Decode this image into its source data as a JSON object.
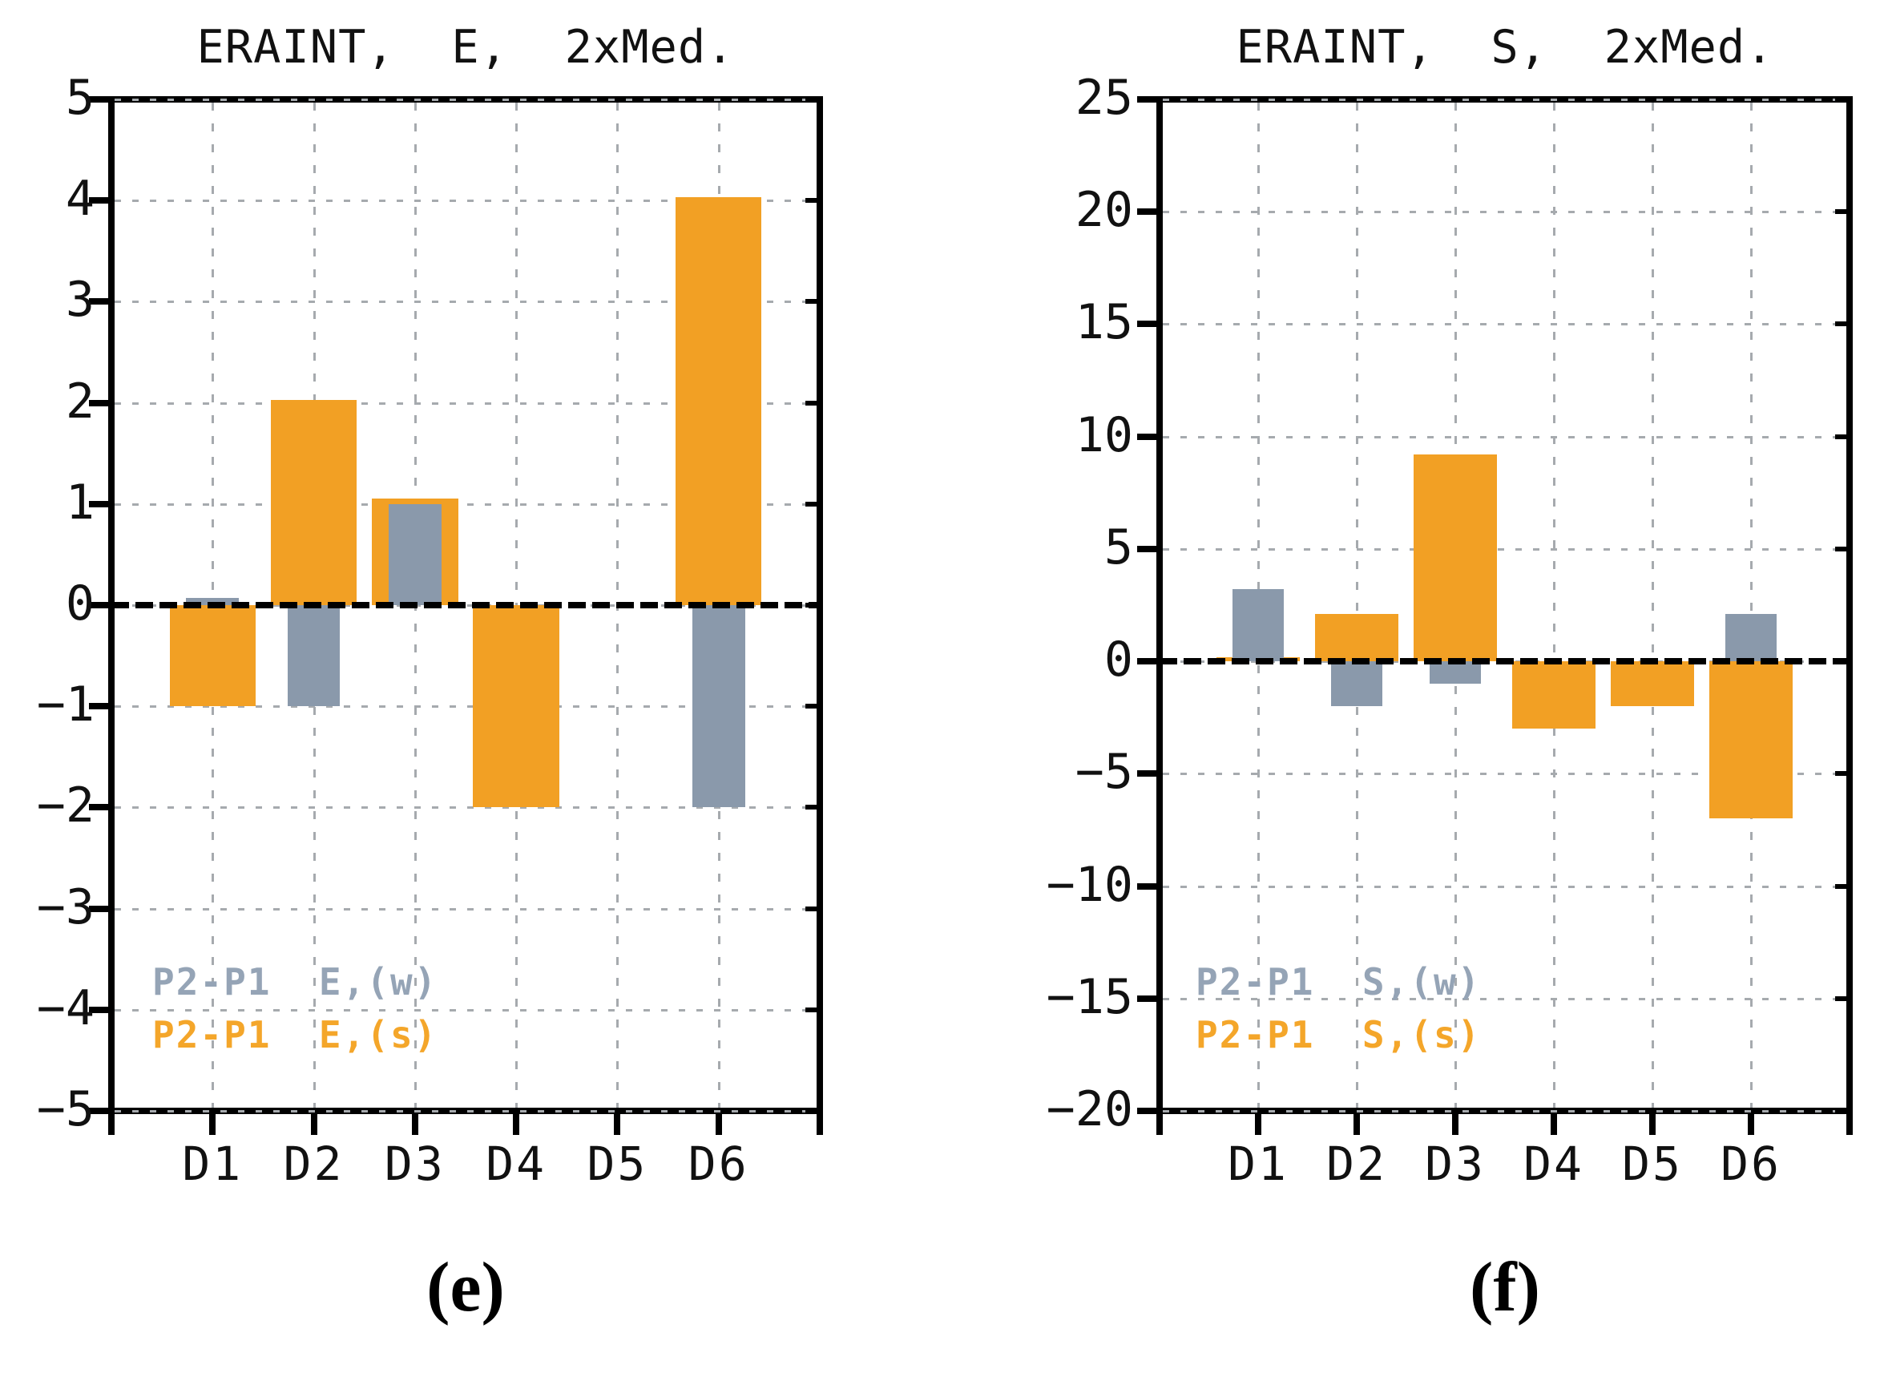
{
  "figure": {
    "background": "#ffffff"
  },
  "colors": {
    "summer_orange": "#F2A024",
    "winter_gray": "#8A99AB",
    "legend_summer": "#F4A62A",
    "legend_winter": "#95A4B6",
    "grid_gray": "#A6AAAE",
    "axis_black": "#000000",
    "text_black": "#111111"
  },
  "chart_data": [
    {
      "type": "bar",
      "title": "ERAINT,  E,  2xMed.",
      "caption": "(e)",
      "categories": [
        "D1",
        "D2",
        "D3",
        "D4",
        "D5",
        "D6"
      ],
      "ylim": [
        -5,
        5
      ],
      "yticks": [
        5,
        4,
        3,
        2,
        1,
        0,
        -1,
        -2,
        -3,
        -4,
        -5
      ],
      "ytick_labels": [
        "5",
        "4",
        "3",
        "2",
        "1",
        "0",
        "−1",
        "−2",
        "−3",
        "−4",
        "−5"
      ],
      "grid": true,
      "legend_position": "bottom-left-inside",
      "series": [
        {
          "name": "P2-P1  E,(w)",
          "season": "winter",
          "color": "#8A99AB",
          "text_color": "#95A4B6",
          "width_frac": 0.52,
          "z": 2,
          "values": [
            0.07,
            -1.0,
            1.0,
            0.0,
            0.0,
            -2.0
          ]
        },
        {
          "name": "P2-P1  E,(s)",
          "season": "summer",
          "color": "#F2A024",
          "text_color": "#F4A62A",
          "width_frac": 0.85,
          "z": 1,
          "values": [
            -1.0,
            2.03,
            1.05,
            -2.0,
            0.0,
            4.03
          ]
        }
      ]
    },
    {
      "type": "bar",
      "title": "ERAINT,  S,  2xMed.",
      "caption": "(f)",
      "categories": [
        "D1",
        "D2",
        "D3",
        "D4",
        "D5",
        "D6"
      ],
      "ylim": [
        -20,
        25
      ],
      "yticks": [
        25,
        20,
        15,
        10,
        5,
        0,
        -5,
        -10,
        -15,
        -20
      ],
      "ytick_labels": [
        "25",
        "20",
        "15",
        "10",
        "5",
        "0",
        "−5",
        "−10",
        "−15",
        "−20"
      ],
      "grid": true,
      "legend_position": "bottom-left-inside",
      "series": [
        {
          "name": "P2-P1  S,(w)",
          "season": "winter",
          "color": "#8A99AB",
          "text_color": "#95A4B6",
          "width_frac": 0.52,
          "z": 2,
          "values": [
            3.2,
            -2.0,
            -1.0,
            0.0,
            0.0,
            2.1
          ]
        },
        {
          "name": "P2-P1  S,(s)",
          "season": "summer",
          "color": "#F2A024",
          "text_color": "#F4A62A",
          "width_frac": 0.85,
          "z": 1,
          "values": [
            0.2,
            2.1,
            9.2,
            -3.0,
            -2.0,
            -7.0
          ]
        }
      ]
    }
  ]
}
